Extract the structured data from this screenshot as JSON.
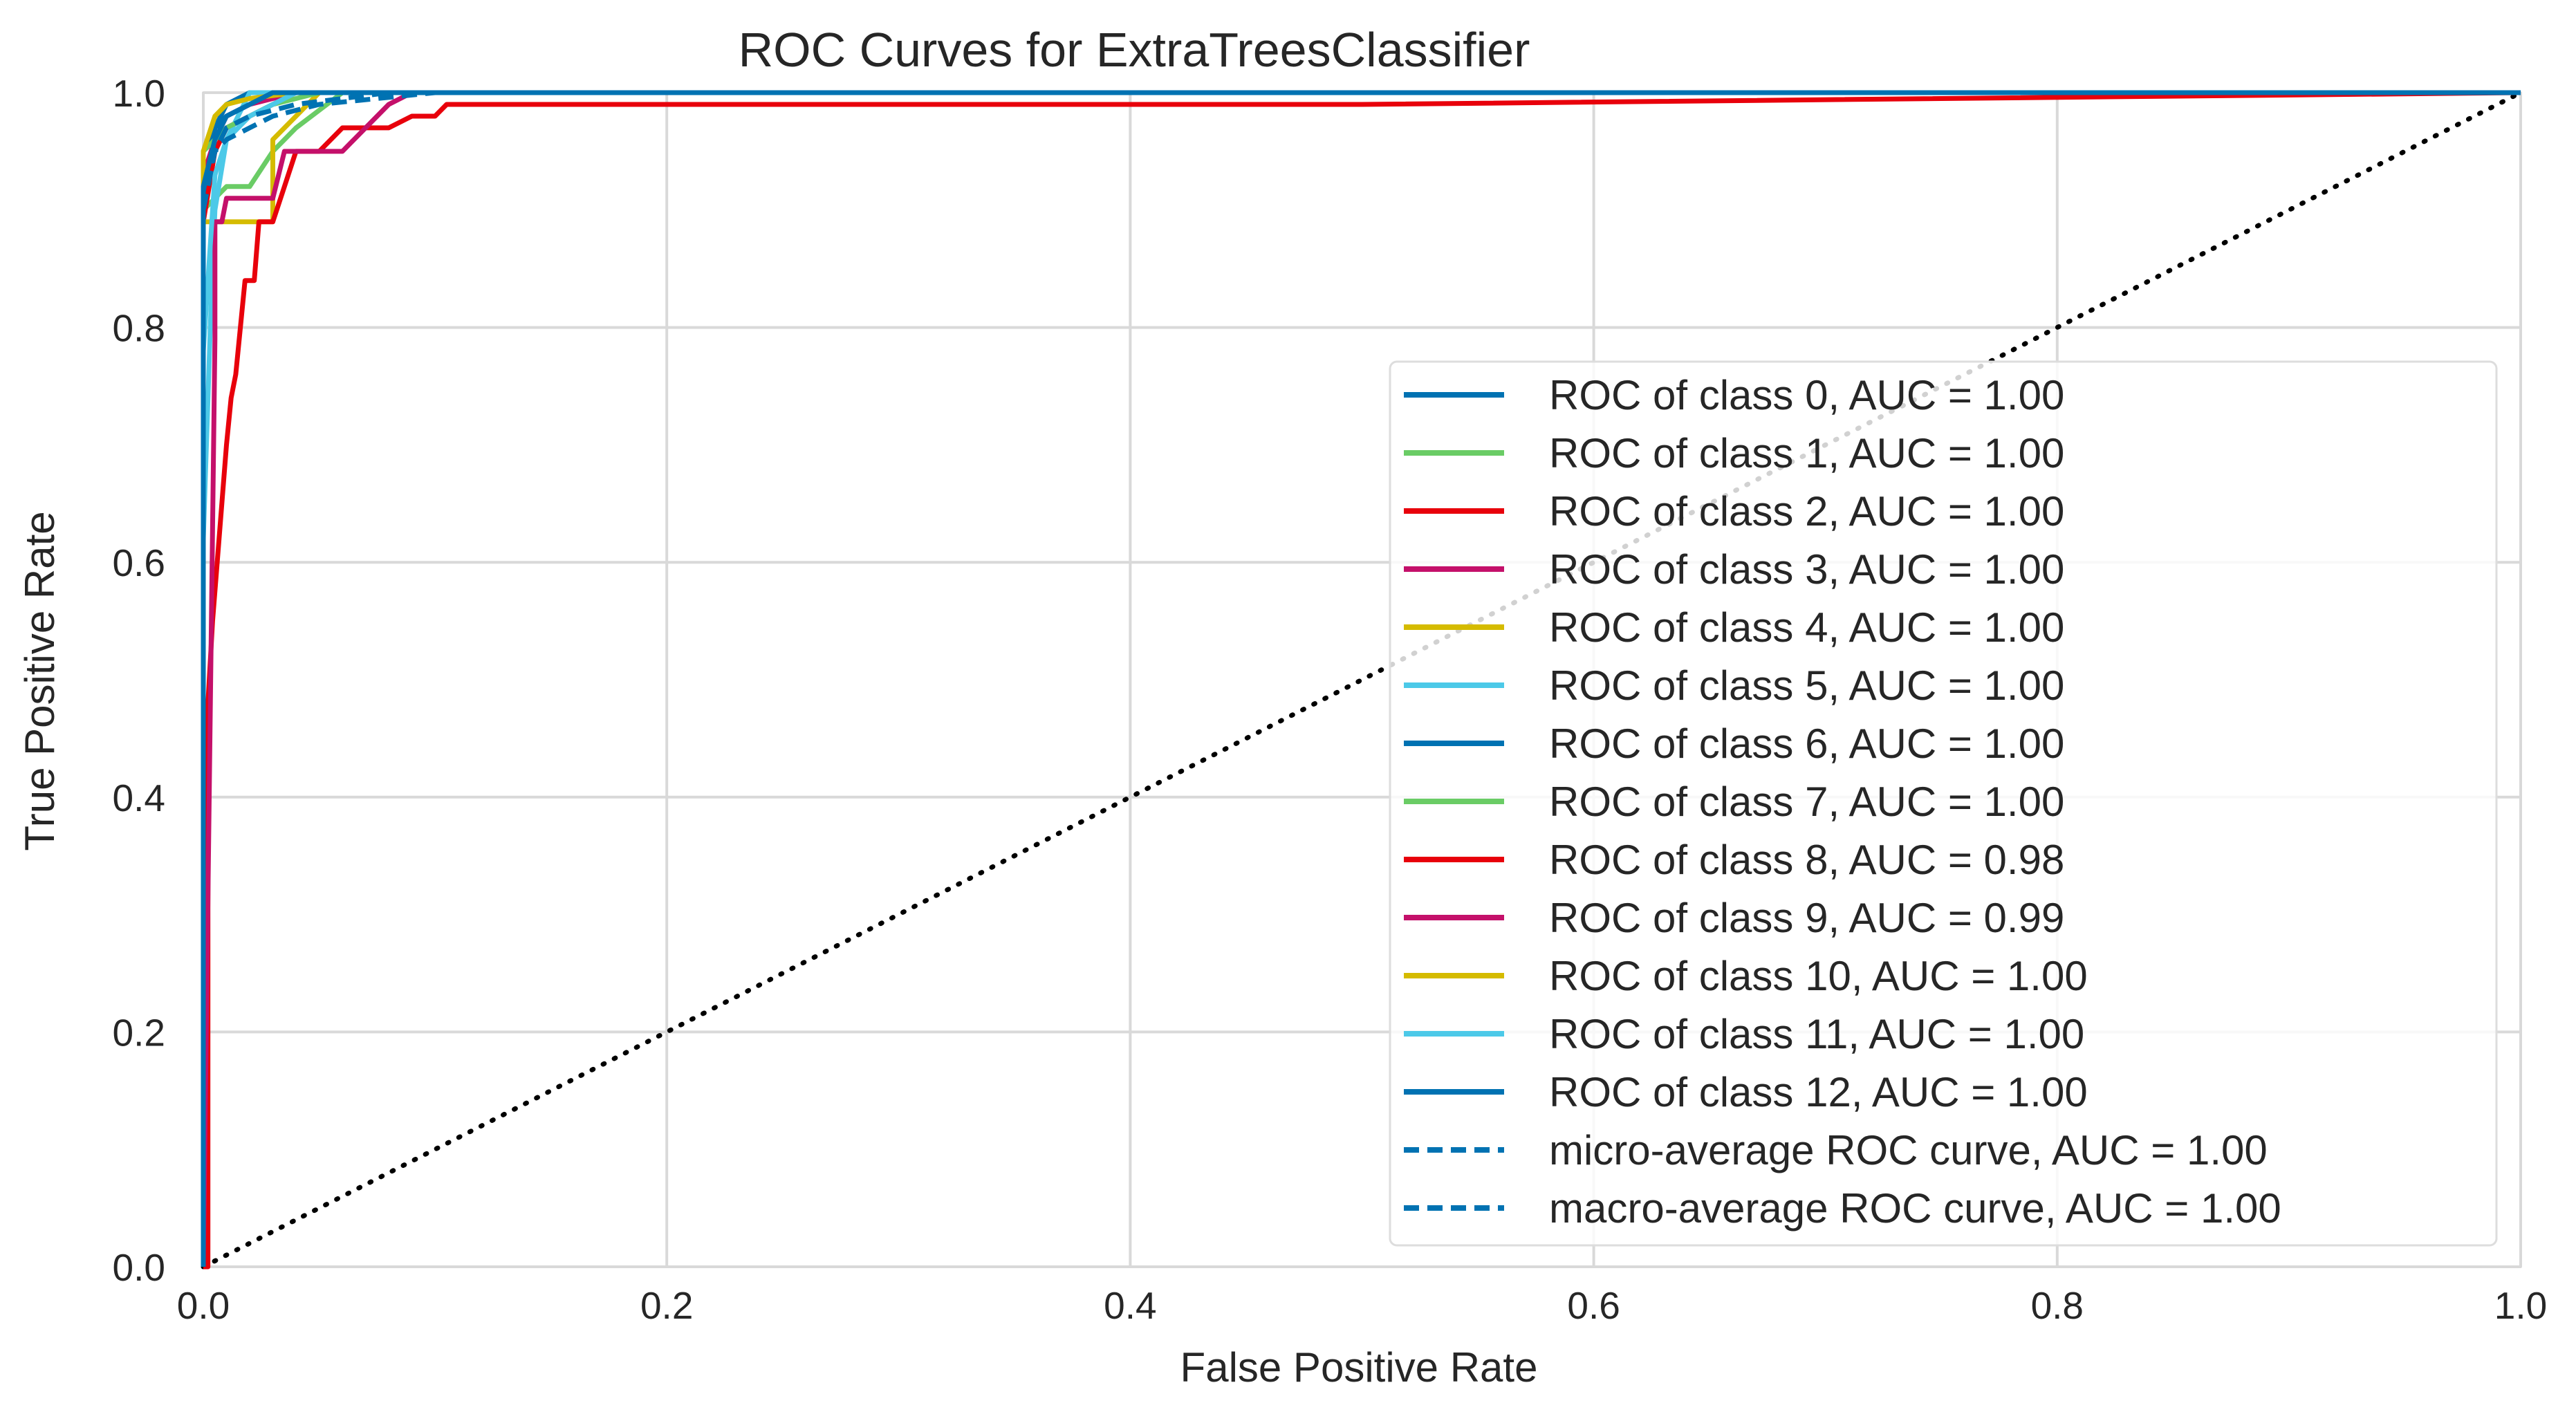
{
  "chart_data": {
    "type": "line",
    "title": "ROC Curves for ExtraTreesClassifier",
    "xlabel": "False Positive Rate",
    "ylabel": "True Positive Rate",
    "xlim": [
      0.0,
      1.0
    ],
    "ylim": [
      0.0,
      1.0
    ],
    "grid": true,
    "legend_position": "center-right",
    "xticks": [
      "0.0",
      "0.2",
      "0.4",
      "0.6",
      "0.8",
      "1.0"
    ],
    "yticks": [
      "0.0",
      "0.2",
      "0.4",
      "0.6",
      "0.8",
      "1.0"
    ],
    "series": [
      {
        "name": "ROC of class 0, AUC = 1.00",
        "color": "#0072B2",
        "dashed": false,
        "x": [
          0,
          0.0,
          0.005,
          0.01,
          0.02,
          0.03,
          1.0
        ],
        "y": [
          0,
          0.9,
          0.97,
          0.99,
          1.0,
          1.0,
          1.0
        ]
      },
      {
        "name": "ROC of class 1, AUC = 1.00",
        "color": "#6ACC65",
        "dashed": false,
        "x": [
          0,
          0.0,
          0.01,
          0.02,
          0.03,
          0.04,
          0.06,
          1.0
        ],
        "y": [
          0,
          0.9,
          0.92,
          0.92,
          0.95,
          0.97,
          1.0,
          1.0
        ]
      },
      {
        "name": "ROC of class 2, AUC = 1.00",
        "color": "#E8000B",
        "dashed": false,
        "x": [
          0,
          0.0,
          0.005,
          0.01,
          0.02,
          0.03,
          0.04,
          1.0
        ],
        "y": [
          0,
          0.89,
          0.95,
          0.97,
          0.98,
          0.99,
          1.0,
          1.0
        ]
      },
      {
        "name": "ROC of class 3, AUC = 1.00",
        "color": "#C4106A",
        "dashed": false,
        "x": [
          0,
          0.0,
          0.005,
          0.01,
          0.02,
          0.04,
          1.0
        ],
        "y": [
          0,
          0.93,
          0.96,
          0.98,
          0.99,
          1.0,
          1.0
        ]
      },
      {
        "name": "ROC of class 4, AUC = 1.00",
        "color": "#D5BB00",
        "dashed": false,
        "x": [
          0,
          0.0,
          0.005,
          0.02,
          0.03,
          0.03,
          0.05,
          1.0
        ],
        "y": [
          0,
          0.89,
          0.89,
          0.89,
          0.89,
          0.96,
          1.0,
          1.0
        ]
      },
      {
        "name": "ROC of class 5, AUC = 1.00",
        "color": "#4CC9E8",
        "dashed": false,
        "x": [
          0,
          0.0,
          0.003,
          0.005,
          0.01,
          0.02,
          1.0
        ],
        "y": [
          0,
          0.62,
          0.8,
          0.9,
          0.96,
          1.0,
          1.0
        ]
      },
      {
        "name": "ROC of class 6, AUC = 1.00",
        "color": "#0072B2",
        "dashed": false,
        "x": [
          0,
          0.0,
          0.005,
          0.01,
          0.03,
          1.0
        ],
        "y": [
          0,
          0.95,
          0.97,
          0.98,
          1.0,
          1.0
        ]
      },
      {
        "name": "ROC of class 7, AUC = 1.00",
        "color": "#6ACC65",
        "dashed": false,
        "x": [
          0,
          0.0,
          0.01,
          0.03,
          0.05,
          1.0
        ],
        "y": [
          0,
          0.95,
          0.97,
          0.99,
          1.0,
          1.0
        ]
      },
      {
        "name": "ROC of class 8, AUC = 0.98",
        "color": "#E8000B",
        "dashed": false,
        "x": [
          0,
          0.002,
          0.002,
          0.004,
          0.006,
          0.008,
          0.01,
          0.012,
          0.014,
          0.016,
          0.018,
          0.02,
          0.022,
          0.024,
          0.026,
          0.03,
          0.035,
          0.04,
          0.05,
          0.06,
          0.07,
          0.08,
          0.09,
          0.1,
          0.105,
          0.5,
          1.0
        ],
        "y": [
          0,
          0.0,
          0.48,
          0.55,
          0.6,
          0.65,
          0.7,
          0.74,
          0.76,
          0.8,
          0.84,
          0.84,
          0.84,
          0.89,
          0.89,
          0.89,
          0.92,
          0.95,
          0.95,
          0.97,
          0.97,
          0.97,
          0.98,
          0.98,
          0.99,
          0.99,
          1.0
        ]
      },
      {
        "name": "ROC of class 9, AUC = 0.99",
        "color": "#C4106A",
        "dashed": false,
        "x": [
          0,
          0.005,
          0.005,
          0.008,
          0.01,
          0.02,
          0.03,
          0.035,
          0.05,
          0.06,
          0.07,
          0.08,
          0.09,
          1.0
        ],
        "y": [
          0,
          0.79,
          0.89,
          0.89,
          0.91,
          0.91,
          0.91,
          0.95,
          0.95,
          0.95,
          0.97,
          0.99,
          1.0,
          1.0
        ]
      },
      {
        "name": "ROC of class 10, AUC = 1.00",
        "color": "#D5BB00",
        "dashed": false,
        "x": [
          0,
          0.0,
          0.005,
          0.01,
          0.02,
          0.04,
          1.0
        ],
        "y": [
          0,
          0.95,
          0.98,
          0.99,
          0.995,
          1.0,
          1.0
        ]
      },
      {
        "name": "ROC of class 11, AUC = 1.00",
        "color": "#4CC9E8",
        "dashed": false,
        "x": [
          0,
          0.0,
          0.005,
          0.01,
          0.02,
          0.04,
          1.0
        ],
        "y": [
          0,
          0.78,
          0.93,
          0.96,
          0.98,
          1.0,
          1.0
        ]
      },
      {
        "name": "ROC of class 12, AUC = 1.00",
        "color": "#0072B2",
        "dashed": false,
        "x": [
          0,
          0.0,
          0.005,
          0.01,
          0.03,
          1.0
        ],
        "y": [
          0,
          0.92,
          0.96,
          0.98,
          1.0,
          1.0
        ]
      },
      {
        "name": "micro-average ROC curve, AUC = 1.00",
        "color": "#0072B2",
        "dashed": true,
        "x": [
          0,
          0.0,
          0.005,
          0.01,
          0.02,
          0.04,
          0.08,
          1.0
        ],
        "y": [
          0,
          0.9,
          0.95,
          0.97,
          0.98,
          0.99,
          1.0,
          1.0
        ]
      },
      {
        "name": "macro-average ROC curve, AUC = 1.00",
        "color": "#0072B2",
        "dashed": true,
        "x": [
          0,
          0.0,
          0.005,
          0.01,
          0.02,
          0.03,
          0.05,
          0.1,
          1.0
        ],
        "y": [
          0,
          0.92,
          0.95,
          0.96,
          0.97,
          0.98,
          0.99,
          1.0,
          1.0
        ]
      }
    ],
    "reference_line": {
      "x": [
        0,
        1
      ],
      "y": [
        0,
        1
      ],
      "style": "dotted",
      "color": "#000000"
    }
  }
}
